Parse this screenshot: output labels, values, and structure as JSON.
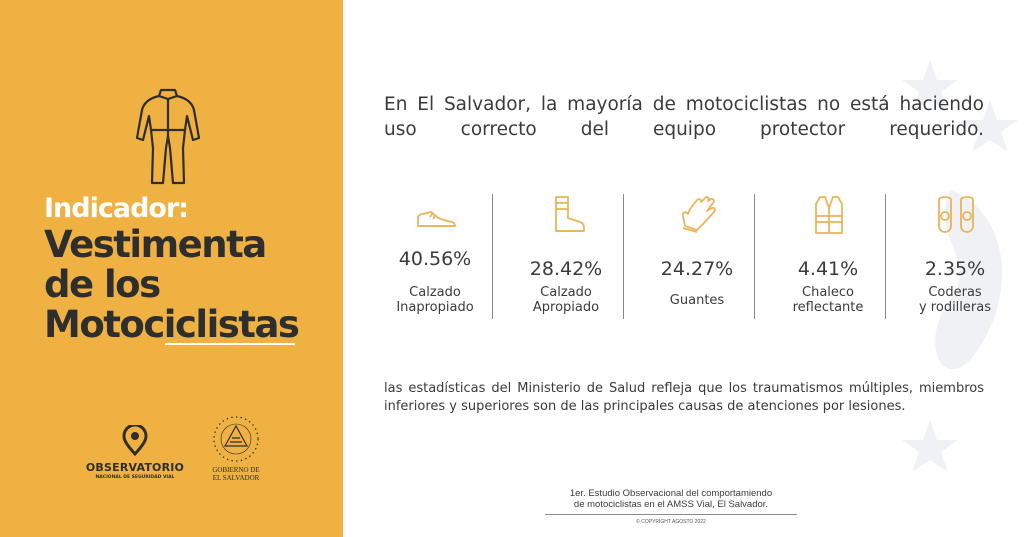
{
  "left_panel": {
    "indicator_label": "Indicador:",
    "title_lines": [
      "Vestimenta",
      "de los",
      "Motociclistas"
    ],
    "observatorio_name": "OBSERVATORIO",
    "observatorio_sub": "NACIONAL DE SEGURIDAD VIAL",
    "gobierno_lines": [
      "GOBIERNO DE",
      "EL SALVADOR"
    ],
    "background_color": "#f0b143"
  },
  "headline": "En El Salvador, la mayoría de motociclistas no está haciendo uso correcto del equipo protector requerido.",
  "stats": [
    {
      "icon": "shoe-icon",
      "percent": "40.56%",
      "label_lines": [
        "Calzado",
        "Inapropiado"
      ]
    },
    {
      "icon": "boot-icon",
      "percent": "28.42%",
      "label_lines": [
        "Calzado",
        "Apropiado"
      ]
    },
    {
      "icon": "glove-icon",
      "percent": "24.27%",
      "label_lines": [
        "Guantes"
      ]
    },
    {
      "icon": "vest-icon",
      "percent": "4.41%",
      "label_lines": [
        "Chaleco",
        "reflectante"
      ]
    },
    {
      "icon": "knee-pads-icon",
      "percent": "2.35%",
      "label_lines": [
        "Coderas",
        "y rodilleras"
      ]
    }
  ],
  "paragraph": "las estadísticas del Ministerio de Salud refleja que los traumatismos múltiples, miembros inferiores y superiores son de las principales causas de atenciones por lesiones.",
  "source_lines": [
    "1er. Estudio Observacional  del comportamiendo",
    "de motociclistas en el AMSS Vial, El Salvador."
  ],
  "copyright": "© COPYRIGHT AGOSTO 2022",
  "icon_color": "#e9b45a"
}
